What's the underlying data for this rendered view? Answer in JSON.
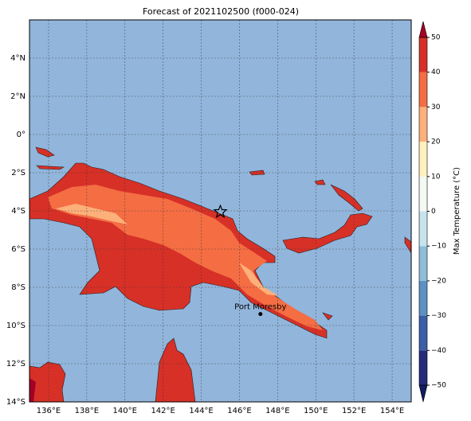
{
  "title": "Forecast of 2021102500 (f000-024)",
  "map": {
    "lonlim": [
      135,
      155
    ],
    "latlim": [
      -14,
      6
    ],
    "lon_ticks": [
      {
        "value": 136,
        "label": "136°E"
      },
      {
        "value": 138,
        "label": "138°E"
      },
      {
        "value": 140,
        "label": "140°E"
      },
      {
        "value": 142,
        "label": "142°E"
      },
      {
        "value": 144,
        "label": "144°E"
      },
      {
        "value": 146,
        "label": "146°E"
      },
      {
        "value": 148,
        "label": "148°E"
      },
      {
        "value": 150,
        "label": "150°E"
      },
      {
        "value": 152,
        "label": "152°E"
      },
      {
        "value": 154,
        "label": "154°E"
      }
    ],
    "lat_ticks": [
      {
        "value": 4,
        "label": "4°N"
      },
      {
        "value": 2,
        "label": "2°N"
      },
      {
        "value": 0,
        "label": "0°"
      },
      {
        "value": -2,
        "label": "2°S"
      },
      {
        "value": -4,
        "label": "4°S"
      },
      {
        "value": -6,
        "label": "6°S"
      },
      {
        "value": -8,
        "label": "8°S"
      },
      {
        "value": -10,
        "label": "10°S"
      },
      {
        "value": -12,
        "label": "12°S"
      },
      {
        "value": -14,
        "label": "14°S"
      }
    ],
    "grid": true,
    "ocean_color": "#92b5db",
    "city": {
      "name": "Port Moresby",
      "lon": 147.1,
      "lat": -9.4
    },
    "star": {
      "lon": 145,
      "lat": -4.05
    }
  },
  "colorbar": {
    "label": "Max Temperature (°C)",
    "lim": [
      -50,
      50
    ],
    "ticks": [
      {
        "value": -50,
        "label": "−50"
      },
      {
        "value": -40,
        "label": "−40"
      },
      {
        "value": -30,
        "label": "−30"
      },
      {
        "value": -20,
        "label": "−20"
      },
      {
        "value": -10,
        "label": "−10"
      },
      0,
      10,
      20,
      30,
      40,
      50
    ],
    "colors": [
      "#262a7a",
      "#3a5fa6",
      "#5b91c3",
      "#8cbedb",
      "#c6e3ee",
      "#f3f9f3",
      "#fff1bd",
      "#fdb07a",
      "#f46d43",
      "#d73027"
    ],
    "under_color": "#131c5e",
    "over_color": "#a50026"
  }
}
